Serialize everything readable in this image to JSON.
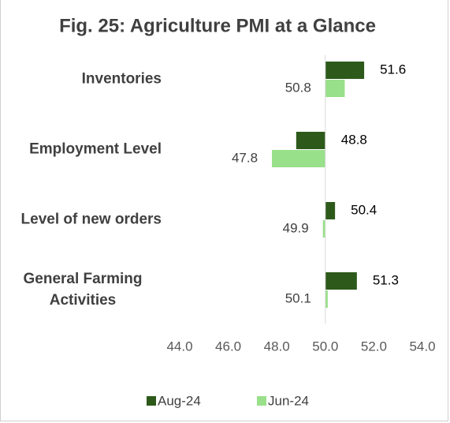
{
  "chart_data": {
    "type": "hbar",
    "title": "Fig. 25: Agriculture PMI at a Glance",
    "categories": [
      "Inventories",
      "Employment Level",
      "Level of new orders",
      "General Farming Activities"
    ],
    "series": [
      {
        "name": "Aug-24",
        "color": "#2d5a1b",
        "values": [
          51.6,
          48.8,
          50.4,
          51.3
        ]
      },
      {
        "name": "Jun-24",
        "color": "#99e08a",
        "values": [
          50.8,
          47.8,
          49.9,
          50.1
        ]
      }
    ],
    "baseline": 50,
    "xlim": [
      44,
      54
    ],
    "xticks": [
      {
        "value": 44,
        "label": "44.0"
      },
      {
        "value": 46,
        "label": "46.0"
      },
      {
        "value": 48,
        "label": "48.0"
      },
      {
        "value": 50,
        "label": "50.0"
      },
      {
        "value": 52,
        "label": "52.0"
      },
      {
        "value": 54,
        "label": "54.0"
      }
    ],
    "legend": "bottom"
  }
}
